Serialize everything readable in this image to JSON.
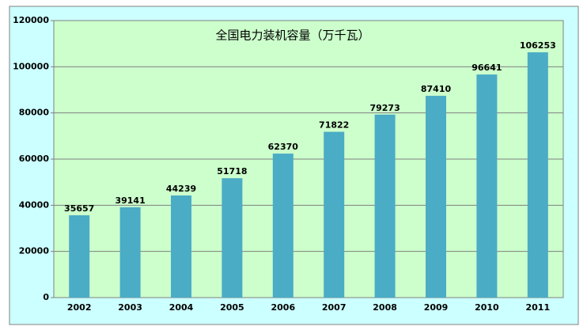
{
  "chart_data": {
    "type": "bar",
    "title": "全国电力装机容量（万千瓦）",
    "categories": [
      "2002",
      "2003",
      "2004",
      "2005",
      "2006",
      "2007",
      "2008",
      "2009",
      "2010",
      "2011"
    ],
    "values": [
      35657,
      39141,
      44239,
      51718,
      62370,
      71822,
      79273,
      87410,
      96641,
      106253
    ],
    "color": "#4bacc6",
    "ylim": [
      0,
      120000
    ],
    "yticks": [
      0,
      20000,
      40000,
      60000,
      80000,
      100000,
      120000
    ],
    "grid": true
  }
}
